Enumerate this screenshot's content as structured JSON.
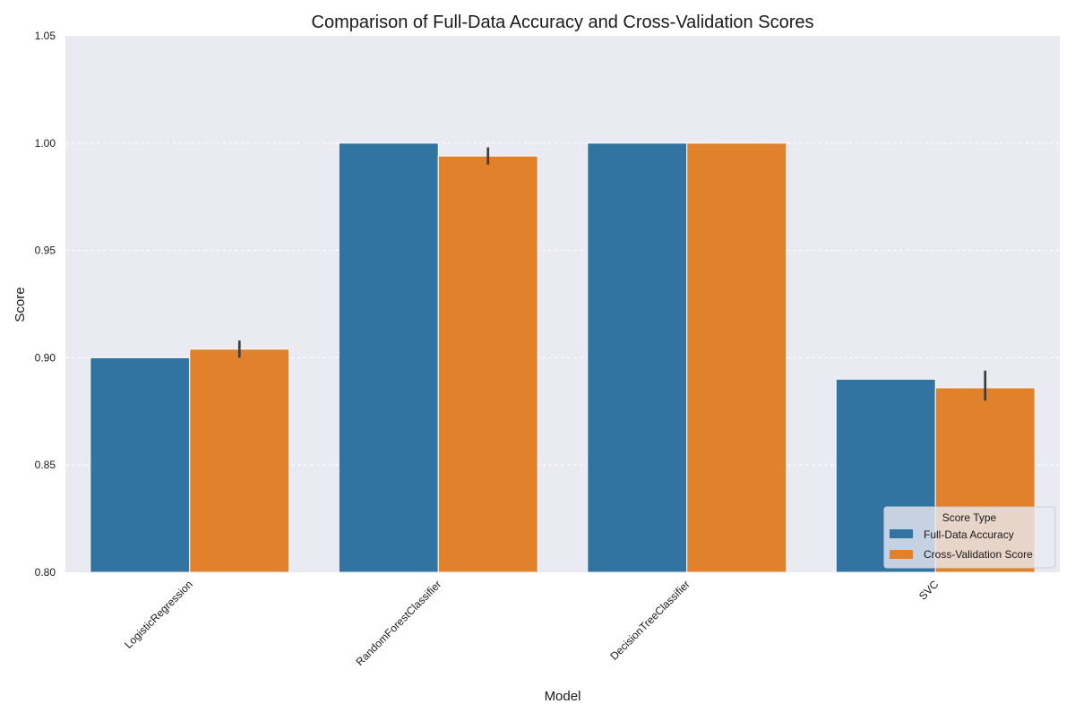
{
  "chart_data": {
    "type": "bar",
    "title": "Comparison of Full-Data Accuracy and Cross-Validation Scores",
    "xlabel": "Model",
    "ylabel": "Score",
    "categories": [
      "LogisticRegression",
      "RandomForestClassifier",
      "DecisionTreeClassifier",
      "SVC"
    ],
    "series": [
      {
        "name": "Full-Data Accuracy",
        "color": "#3274a1",
        "values": [
          0.9,
          1.0,
          1.0,
          0.89
        ],
        "error_low": [
          null,
          null,
          null,
          null
        ],
        "error_high": [
          null,
          null,
          null,
          null
        ]
      },
      {
        "name": "Cross-Validation Score",
        "color": "#e1812c",
        "values": [
          0.904,
          0.994,
          1.0,
          0.886
        ],
        "error_low": [
          0.9,
          0.99,
          null,
          0.88
        ],
        "error_high": [
          0.908,
          0.998,
          null,
          0.894
        ]
      }
    ],
    "ylim": [
      0.8,
      1.05
    ],
    "yticks": [
      "0.80",
      "0.85",
      "0.90",
      "0.95",
      "1.00",
      "1.05"
    ],
    "grid": true,
    "legend": {
      "title": "Score Type",
      "placement": "lower-right"
    },
    "colors": {
      "plot_background": "#eaeaf2",
      "grid": "#ffffff",
      "error_bar": "#3d3d3d"
    }
  }
}
